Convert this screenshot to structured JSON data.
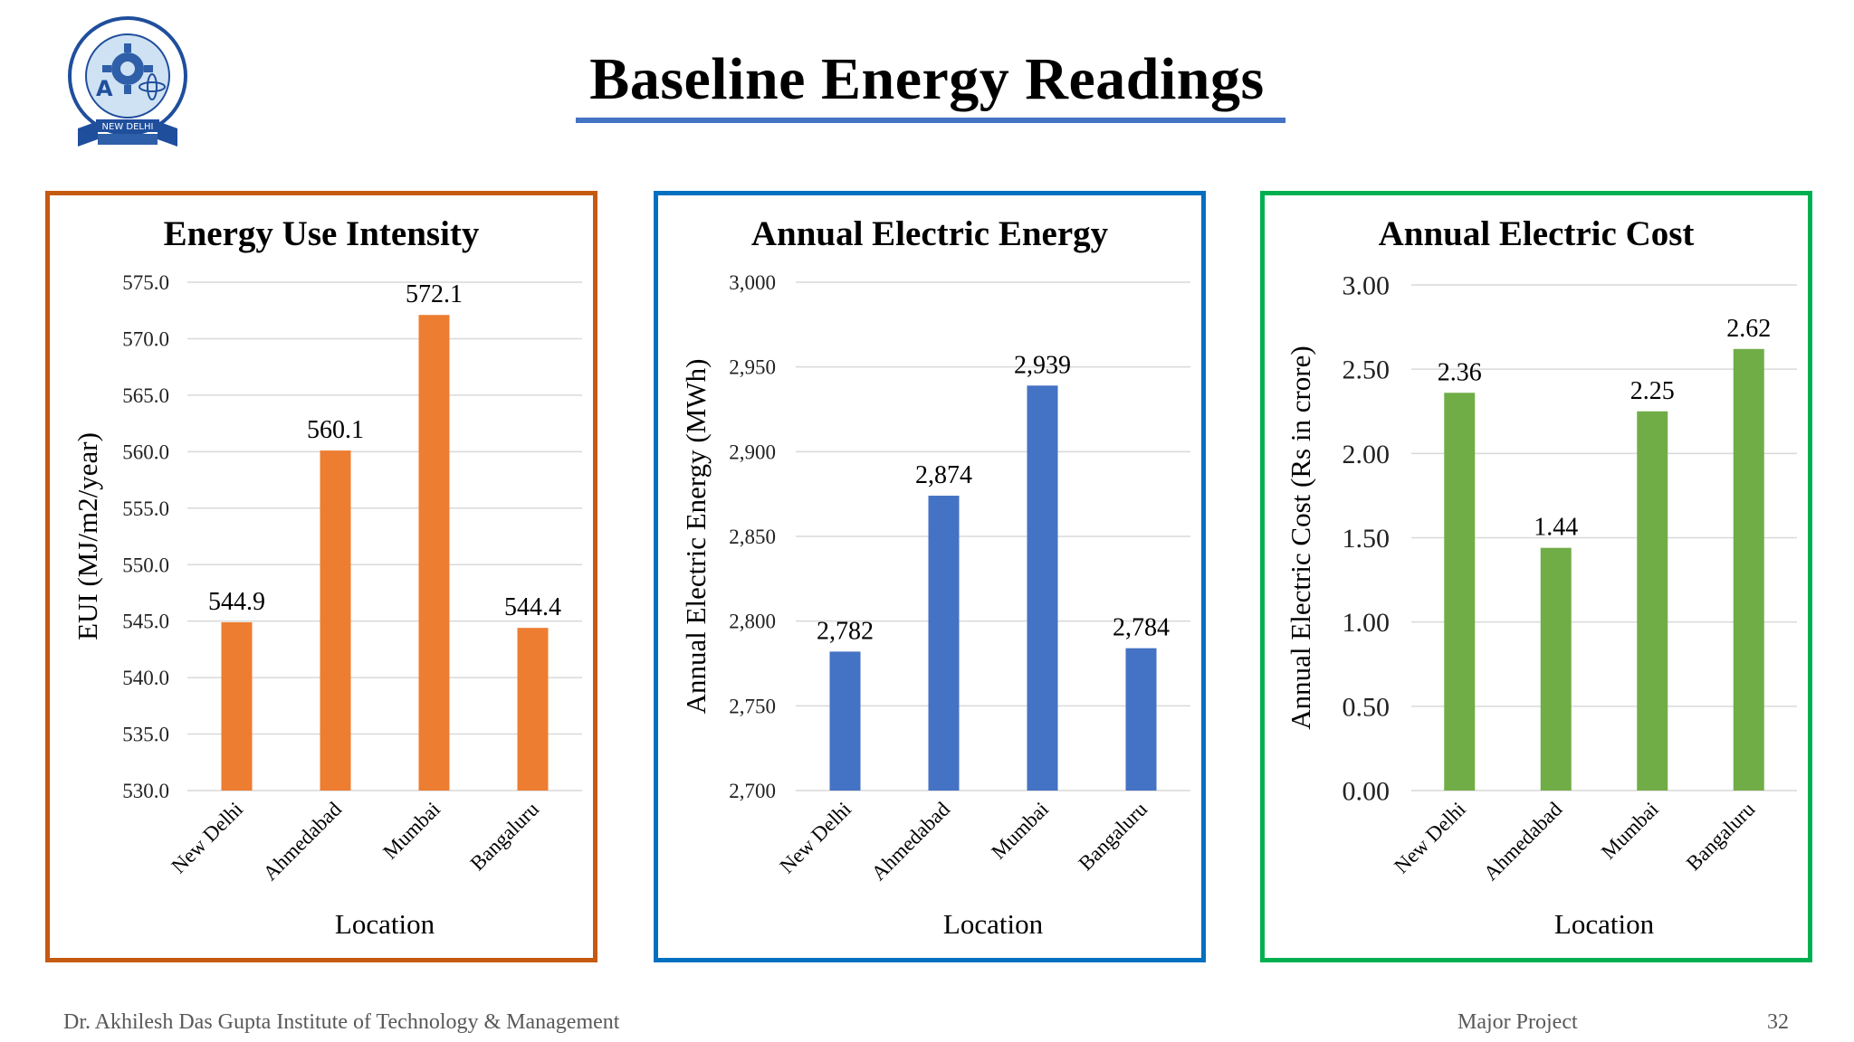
{
  "slide": {
    "title": "Baseline Energy Readings",
    "footer_left": "Dr. Akhilesh Das Gupta Institute of Technology & Management",
    "footer_center": "Major Project",
    "page_number": "32"
  },
  "logo": {
    "top_text": "DR. AKHILESH DAS GUPTA INSTITUTE OF TECHNOLOGY & MANAGEMENT",
    "banner_text": "NEW DELHI"
  },
  "colors": {
    "title_rule": "#4472c4",
    "eui_frame": "#c55a11",
    "energy_frame": "#0070c0",
    "cost_frame": "#00b050"
  },
  "chart_data": [
    {
      "type": "bar",
      "title": "Energy Use Intensity",
      "xlabel": "Location",
      "ylabel": "EUI (MJ/m2/year)",
      "categories": [
        "New Delhi",
        "Ahmedabad",
        "Mumbai",
        "Bangaluru"
      ],
      "values": [
        544.9,
        560.1,
        572.1,
        544.4
      ],
      "value_labels": [
        "544.9",
        "560.1",
        "572.1",
        "544.4"
      ],
      "ylim": [
        530,
        575
      ],
      "yticks": [
        "530.0",
        "535.0",
        "540.0",
        "545.0",
        "550.0",
        "555.0",
        "560.0",
        "565.0",
        "570.0",
        "575.0"
      ],
      "bar_color": "#ed7d31",
      "grid": true,
      "legend": "none"
    },
    {
      "type": "bar",
      "title": "Annual Electric Energy",
      "xlabel": "Location",
      "ylabel": "Annual Electric Energy (MWh)",
      "categories": [
        "New Delhi",
        "Ahmedabad",
        "Mumbai",
        "Bangaluru"
      ],
      "values": [
        2782,
        2874,
        2939,
        2784
      ],
      "value_labels": [
        "2,782",
        "2,874",
        "2,939",
        "2,784"
      ],
      "ylim": [
        2700,
        3000
      ],
      "yticks": [
        "2,700",
        "2,750",
        "2,800",
        "2,850",
        "2,900",
        "2,950",
        "3,000"
      ],
      "bar_color": "#4472c4",
      "grid": true,
      "legend": "none"
    },
    {
      "type": "bar",
      "title": "Annual Electric Cost",
      "xlabel": "Location",
      "ylabel": "Annual Electric Cost (Rs in crore)",
      "categories": [
        "New Delhi",
        "Ahmedabad",
        "Mumbai",
        "Bangaluru"
      ],
      "values": [
        2.36,
        1.44,
        2.25,
        2.62
      ],
      "value_labels": [
        "2.36",
        "1.44",
        "2.25",
        "2.62"
      ],
      "ylim": [
        0,
        3
      ],
      "yticks": [
        "0.00",
        "0.50",
        "1.00",
        "1.50",
        "2.00",
        "2.50",
        "3.00"
      ],
      "bar_color": "#70ad47",
      "grid": true,
      "legend": "none"
    }
  ]
}
